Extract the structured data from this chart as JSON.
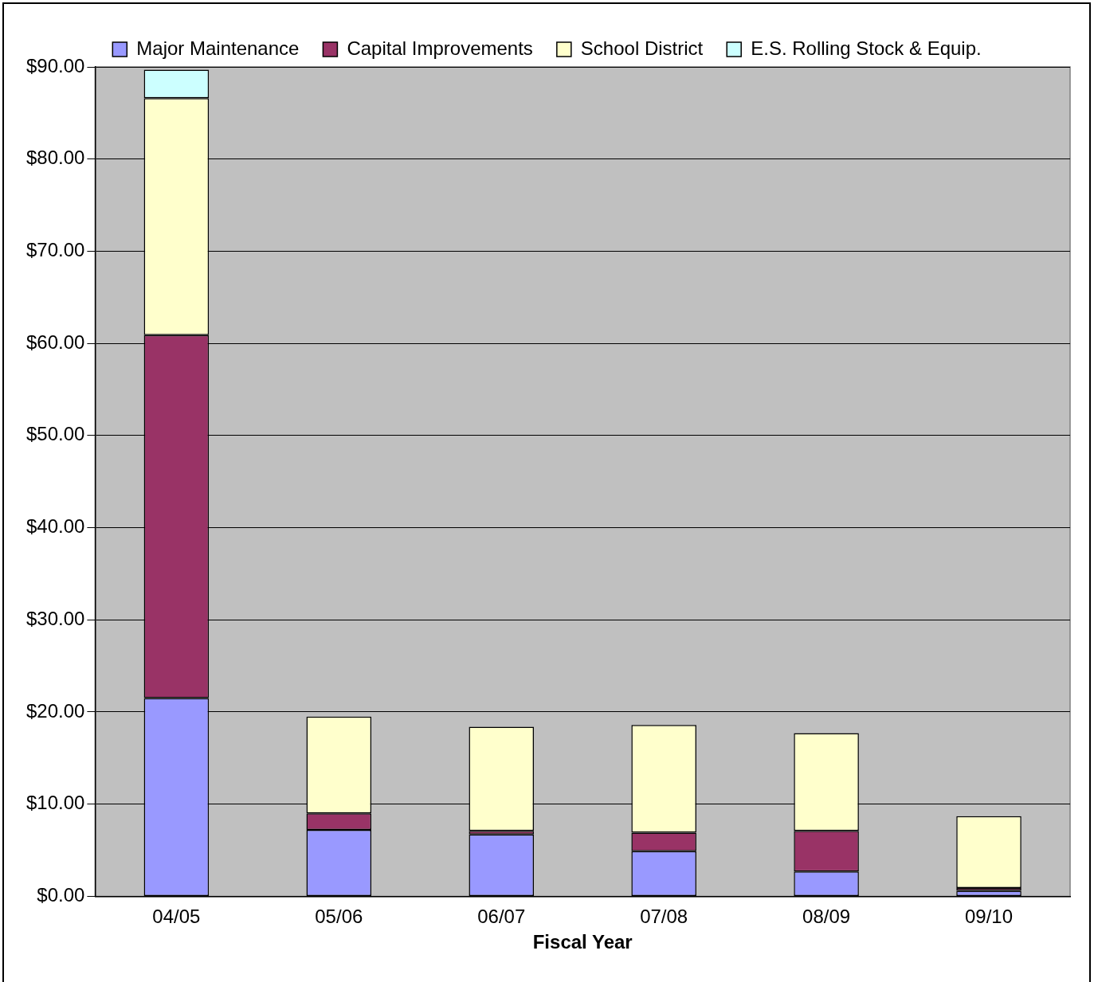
{
  "chart_data": {
    "type": "bar",
    "stacked": true,
    "xlabel": "Fiscal Year",
    "categories": [
      "04/05",
      "05/06",
      "06/07",
      "07/08",
      "08/09",
      "09/10"
    ],
    "series": [
      {
        "name": "Major Maintenance",
        "color": "#9999ff",
        "values": [
          21.5,
          7.2,
          6.7,
          4.9,
          2.7,
          0.6
        ]
      },
      {
        "name": "Capital Improvements",
        "color": "#993366",
        "values": [
          39.4,
          1.8,
          0.4,
          2.0,
          4.4,
          0.3
        ]
      },
      {
        "name": "School District",
        "color": "#ffffcc",
        "values": [
          25.7,
          10.5,
          11.3,
          11.7,
          10.6,
          7.8
        ]
      },
      {
        "name": "E.S. Rolling Stock & Equip.",
        "color": "#ccffff",
        "values": [
          3.1,
          0,
          0,
          0,
          0,
          0
        ]
      }
    ],
    "ylim": [
      0,
      90
    ],
    "yticks": [
      {
        "value": 0,
        "label": "$0.00"
      },
      {
        "value": 10,
        "label": "$10.00"
      },
      {
        "value": 20,
        "label": "$20.00"
      },
      {
        "value": 30,
        "label": "$30.00"
      },
      {
        "value": 40,
        "label": "$40.00"
      },
      {
        "value": 50,
        "label": "$50.00"
      },
      {
        "value": 60,
        "label": "$60.00"
      },
      {
        "value": 70,
        "label": "$70.00"
      },
      {
        "value": 80,
        "label": "$80.00"
      },
      {
        "value": 90,
        "label": "$90.00"
      }
    ],
    "grid": "y",
    "legend": "top"
  }
}
